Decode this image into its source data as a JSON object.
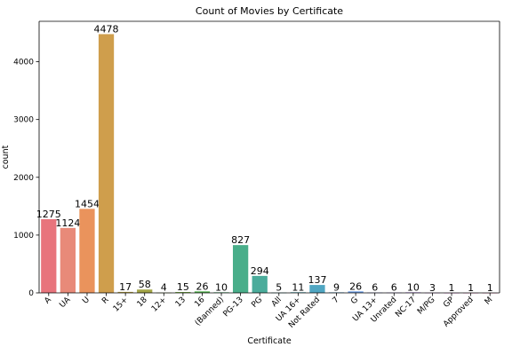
{
  "chart_data": {
    "type": "bar",
    "title": "Count of Movies by Certificate",
    "xlabel": "Certificate",
    "ylabel": "count",
    "ylim": [
      0,
      4700
    ],
    "yticks": [
      0,
      1000,
      2000,
      3000,
      4000
    ],
    "grid": false,
    "categories": [
      "A",
      "UA",
      "U",
      "R",
      "15+",
      "18",
      "12+",
      "13",
      "16",
      "(Banned)",
      "PG-13",
      "PG",
      "All",
      "UA 16+",
      "Not Rated",
      "7",
      "G",
      "UA 13+",
      "Unrated",
      "NC-17",
      "M/PG",
      "GP",
      "Approved",
      "M"
    ],
    "values": [
      1275,
      1124,
      1454,
      4478,
      17,
      58,
      4,
      15,
      26,
      10,
      827,
      294,
      5,
      11,
      137,
      9,
      26,
      6,
      6,
      10,
      3,
      1,
      1,
      1
    ],
    "colors": [
      "#e8747c",
      "#e88a79",
      "#ea935c",
      "#cf9e4c",
      "#b59f43",
      "#a3a546",
      "#90aa47",
      "#77ae48",
      "#52b14d",
      "#49b06f",
      "#49ae8a",
      "#4bac9b",
      "#4caaa8",
      "#4da8b5",
      "#50a6c2",
      "#55a3ce",
      "#6b9be4",
      "#8d93ef",
      "#a78cf1",
      "#bb84ee",
      "#cd79e6",
      "#de6fd6",
      "#e872bb",
      "#e972a4"
    ]
  }
}
